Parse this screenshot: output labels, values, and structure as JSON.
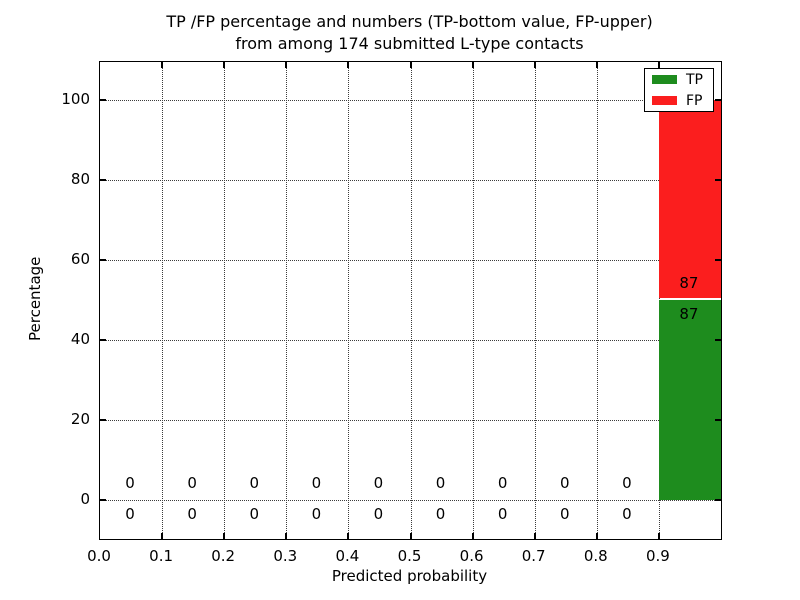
{
  "title": {
    "line1": "TP /FP percentage and numbers (TP-bottom value, FP-upper)",
    "line2": "from among 174 submitted L-type contacts"
  },
  "axes": {
    "x_label": "Predicted probability",
    "y_label": "Percentage",
    "x_ticks": [
      {
        "label": "0.0",
        "value": 0.0
      },
      {
        "label": "0.1",
        "value": 0.1
      },
      {
        "label": "0.2",
        "value": 0.2
      },
      {
        "label": "0.3",
        "value": 0.3
      },
      {
        "label": "0.4",
        "value": 0.4
      },
      {
        "label": "0.5",
        "value": 0.5
      },
      {
        "label": "0.6",
        "value": 0.6
      },
      {
        "label": "0.7",
        "value": 0.7
      },
      {
        "label": "0.8",
        "value": 0.8
      },
      {
        "label": "0.9",
        "value": 0.9
      }
    ],
    "y_ticks": [
      {
        "label": "0",
        "value": 0
      },
      {
        "label": "20",
        "value": 20
      },
      {
        "label": "40",
        "value": 40
      },
      {
        "label": "60",
        "value": 60
      },
      {
        "label": "80",
        "value": 80
      },
      {
        "label": "100",
        "value": 100
      }
    ]
  },
  "legend": {
    "position": "upper right",
    "items": [
      {
        "label": "TP",
        "color": "#1e8c1e"
      },
      {
        "label": "FP",
        "color": "#fb1e1e"
      }
    ]
  },
  "chart_data": {
    "type": "bar",
    "stacked": true,
    "title": "TP /FP percentage and numbers (TP-bottom value, FP-upper) from among 174 submitted L-type contacts",
    "xlabel": "Predicted probability",
    "ylabel": "Percentage",
    "xlim": [
      0.0,
      1.0
    ],
    "ylim": [
      -9,
      110
    ],
    "grid": true,
    "grid_style": "dotted",
    "legend_position": "upper right",
    "total_submitted": 174,
    "bin_edges": [
      0.0,
      0.1,
      0.2,
      0.3,
      0.4,
      0.5,
      0.6,
      0.7,
      0.8,
      0.9,
      1.0
    ],
    "series": [
      {
        "name": "TP",
        "color": "#1e8c1e",
        "percent": [
          0,
          0,
          0,
          0,
          0,
          0,
          0,
          0,
          0,
          50
        ],
        "counts": [
          0,
          0,
          0,
          0,
          0,
          0,
          0,
          0,
          0,
          87
        ]
      },
      {
        "name": "FP",
        "color": "#fb1e1e",
        "percent": [
          0,
          0,
          0,
          0,
          0,
          0,
          0,
          0,
          0,
          50
        ],
        "counts": [
          0,
          0,
          0,
          0,
          0,
          0,
          0,
          0,
          0,
          87
        ]
      }
    ]
  }
}
